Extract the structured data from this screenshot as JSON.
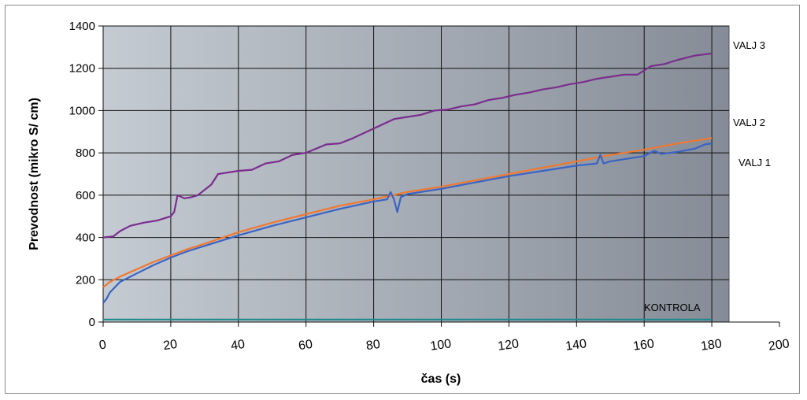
{
  "chart_data": {
    "type": "line",
    "title": "",
    "xlabel": "čas (s)",
    "ylabel": "Prevodnost (mikro S/ cm)",
    "xlim": [
      0,
      200
    ],
    "ylim": [
      0,
      1400
    ],
    "x_ticks": [
      0,
      20,
      40,
      60,
      80,
      100,
      120,
      140,
      160,
      180,
      200
    ],
    "y_ticks": [
      0,
      200,
      400,
      600,
      800,
      1000,
      1200,
      1400
    ],
    "grid": true,
    "legend": "series labels at right end of lines",
    "plot_background": {
      "left": "#c4cbd2",
      "right": "#858c97"
    },
    "series": [
      {
        "name": "VALJ 3",
        "color": "#7b2d8e",
        "x": [
          0,
          3,
          5,
          8,
          12,
          16,
          20,
          21,
          22,
          24,
          26,
          28,
          32,
          34,
          36,
          40,
          44,
          48,
          52,
          56,
          60,
          66,
          70,
          74,
          78,
          82,
          86,
          90,
          94,
          98,
          102,
          106,
          110,
          114,
          118,
          122,
          126,
          130,
          134,
          138,
          142,
          146,
          150,
          154,
          158,
          162,
          166,
          170,
          175,
          180
        ],
        "y": [
          400,
          405,
          430,
          455,
          470,
          480,
          500,
          520,
          600,
          585,
          590,
          600,
          650,
          700,
          705,
          715,
          720,
          750,
          760,
          790,
          800,
          840,
          845,
          870,
          900,
          930,
          960,
          970,
          980,
          1000,
          1005,
          1020,
          1030,
          1050,
          1060,
          1075,
          1085,
          1100,
          1110,
          1125,
          1135,
          1150,
          1160,
          1170,
          1170,
          1210,
          1220,
          1240,
          1260,
          1270
        ]
      },
      {
        "name": "VALJ 2",
        "color": "#f07830",
        "x": [
          0,
          2,
          5,
          10,
          15,
          20,
          25,
          30,
          40,
          50,
          60,
          70,
          80,
          90,
          100,
          110,
          120,
          130,
          140,
          150,
          160,
          170,
          180
        ],
        "y": [
          165,
          190,
          215,
          250,
          285,
          315,
          345,
          370,
          425,
          470,
          510,
          550,
          580,
          615,
          640,
          670,
          700,
          730,
          760,
          790,
          815,
          845,
          870
        ]
      },
      {
        "name": "VALJ 1",
        "color": "#3a63c4",
        "x": [
          0,
          1,
          2,
          5,
          10,
          15,
          20,
          25,
          30,
          40,
          50,
          60,
          70,
          80,
          84,
          85,
          86,
          87,
          88,
          90,
          100,
          110,
          120,
          130,
          140,
          146,
          147,
          148,
          150,
          160,
          163,
          165,
          170,
          175,
          178,
          180
        ],
        "y": [
          90,
          110,
          140,
          190,
          230,
          270,
          305,
          335,
          360,
          410,
          455,
          495,
          535,
          570,
          580,
          615,
          580,
          520,
          590,
          605,
          630,
          660,
          690,
          715,
          740,
          750,
          790,
          750,
          760,
          785,
          810,
          795,
          805,
          820,
          840,
          845
        ]
      },
      {
        "name": "KONTROLA",
        "color": "#1f8a8a",
        "x": [
          0,
          180
        ],
        "y": [
          12,
          12
        ]
      }
    ]
  }
}
